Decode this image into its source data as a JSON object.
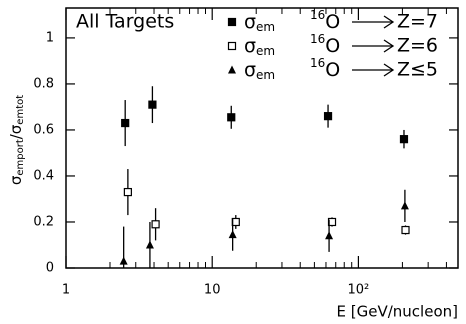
{
  "chart_data": {
    "type": "scatter",
    "annotation": "All Targets",
    "xlabel": "E [GeV/nucleon]",
    "ylabel": {
      "numerator": "σ",
      "numerator_sub": "emport",
      "slash": "/",
      "denominator": "σ",
      "denominator_sub": "emtot"
    },
    "legend_symbol": "σ",
    "legend_subscript": "em",
    "legend_isotope_mass": "16",
    "legend_isotope": "O",
    "xlog": true,
    "xlim": [
      1,
      480
    ],
    "xticks": [
      1,
      10,
      {
        "value": 100,
        "label": "10²"
      }
    ],
    "xminorticks": [
      2,
      3,
      4,
      5,
      6,
      7,
      8,
      9,
      20,
      30,
      40,
      50,
      60,
      70,
      80,
      90,
      200,
      300,
      400
    ],
    "ylim": [
      0,
      1.13
    ],
    "yticks": [
      0,
      0.2,
      0.4,
      0.6,
      0.8,
      1
    ],
    "legend": "upper right",
    "series": [
      {
        "name": "Z=7",
        "color": "#000000",
        "marker": "square-filled",
        "x": [
          2.54,
          3.9,
          13.5,
          62,
          205
        ],
        "values": [
          0.63,
          0.71,
          0.655,
          0.66,
          0.56
        ],
        "errors": [
          0.1,
          0.08,
          0.05,
          0.05,
          0.04
        ]
      },
      {
        "name": "Z=6",
        "color": "#000000",
        "marker": "square-open",
        "x": [
          2.65,
          4.1,
          14.5,
          66,
          210
        ],
        "values": [
          0.33,
          0.19,
          0.2,
          0.2,
          0.165
        ],
        "errors": [
          0.1,
          0.07,
          0.03,
          0.02,
          0.02
        ]
      },
      {
        "name": "Z≤5",
        "color": "#000000",
        "marker": "triangle-filled",
        "x": [
          2.48,
          3.75,
          13.8,
          63,
          208
        ],
        "values": [
          0.03,
          0.1,
          0.145,
          0.14,
          0.27
        ],
        "errors": [
          0.15,
          0.1,
          0.07,
          0.07,
          0.07
        ]
      }
    ]
  }
}
